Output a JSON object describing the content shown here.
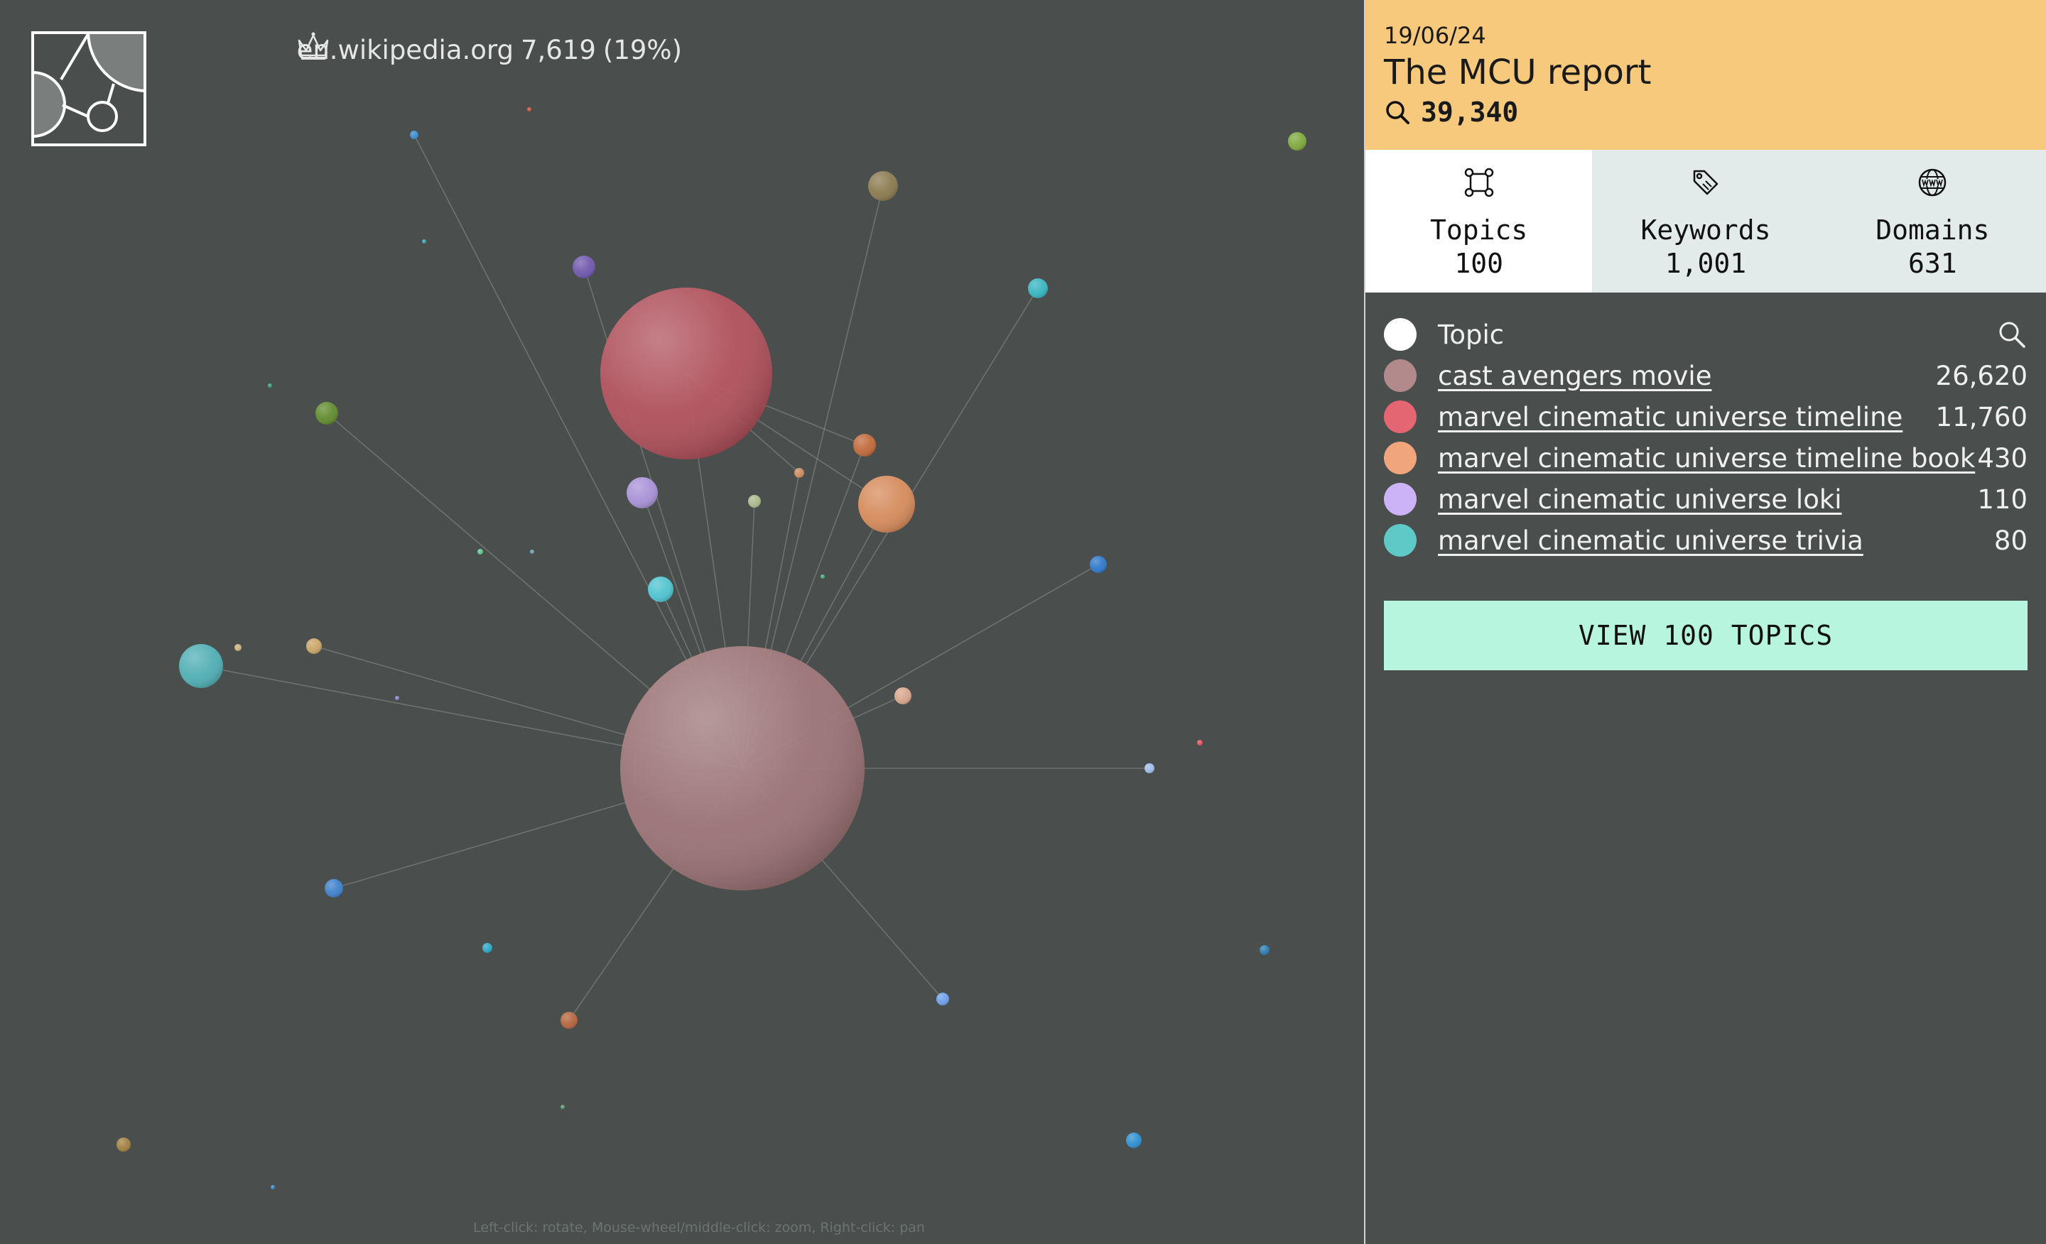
{
  "header": {
    "date": "19/06/24",
    "title": "The MCU report",
    "search_count": "39,340"
  },
  "top_domain": {
    "icon": "crown-icon",
    "domain": "en.wikipedia.org",
    "count": "7,619",
    "percent": "(19%)"
  },
  "tabs": [
    {
      "label": "Topics",
      "value": "100",
      "icon": "topics-network-icon",
      "active": true
    },
    {
      "label": "Keywords",
      "value": "1,001",
      "icon": "tag-icon",
      "active": false
    },
    {
      "label": "Domains",
      "value": "631",
      "icon": "globe-www-icon",
      "active": false
    }
  ],
  "legend": {
    "header_label": "Topic",
    "items": [
      {
        "label": "cast avengers movie",
        "value": "26,620",
        "color": "#b38a8c"
      },
      {
        "label": "marvel cinematic universe timeline",
        "value": "11,760",
        "color": "#e36672"
      },
      {
        "label": "marvel cinematic universe timeline book",
        "value": "430",
        "color": "#f1a57d"
      },
      {
        "label": "marvel cinematic universe loki",
        "value": "110",
        "color": "#ccb3f7"
      },
      {
        "label": "marvel cinematic universe trivia",
        "value": "80",
        "color": "#5fc9c7"
      }
    ]
  },
  "cta_label": "VIEW 100 TOPICS",
  "hint": "Left-click: rotate, Mouse-wheel/middle-click: zoom, Right-click: pan"
}
